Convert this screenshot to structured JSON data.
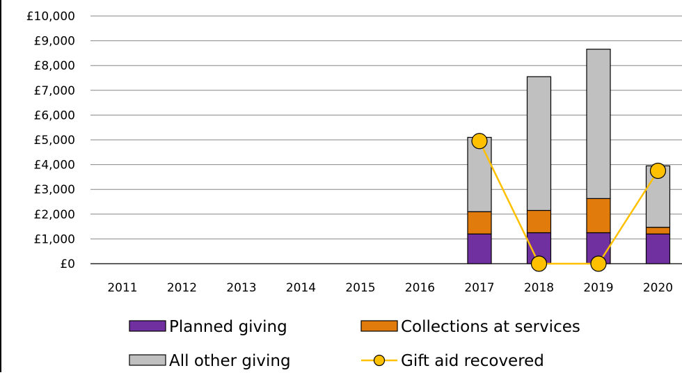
{
  "chart_data": {
    "type": "bar",
    "stacked": true,
    "categories": [
      "2011",
      "2012",
      "2013",
      "2014",
      "2015",
      "2016",
      "2017",
      "2018",
      "2019",
      "2020"
    ],
    "series": [
      {
        "name": "Planned giving",
        "kind": "bar",
        "color": "#7030a0",
        "values": [
          0,
          0,
          0,
          0,
          0,
          0,
          1200,
          1250,
          1250,
          1200
        ]
      },
      {
        "name": "Collections at services",
        "kind": "bar",
        "color": "#e07b0c",
        "values": [
          0,
          0,
          0,
          0,
          0,
          0,
          900,
          900,
          1380,
          270
        ]
      },
      {
        "name": "All other giving",
        "kind": "bar",
        "color": "#c0c0c0",
        "values": [
          0,
          0,
          0,
          0,
          0,
          0,
          3000,
          5400,
          6030,
          2480
        ]
      },
      {
        "name": "Gift aid recovered",
        "kind": "line",
        "color": "#ffc000",
        "values": [
          null,
          null,
          null,
          null,
          null,
          null,
          4950,
          0,
          0,
          3750
        ]
      }
    ],
    "ylim": [
      0,
      10000
    ],
    "yticks": [
      "£0",
      "£1,000",
      "£2,000",
      "£3,000",
      "£4,000",
      "£5,000",
      "£6,000",
      "£7,000",
      "£8,000",
      "£9,000",
      "£10,000"
    ],
    "grid": true,
    "legend_position": "bottom"
  }
}
